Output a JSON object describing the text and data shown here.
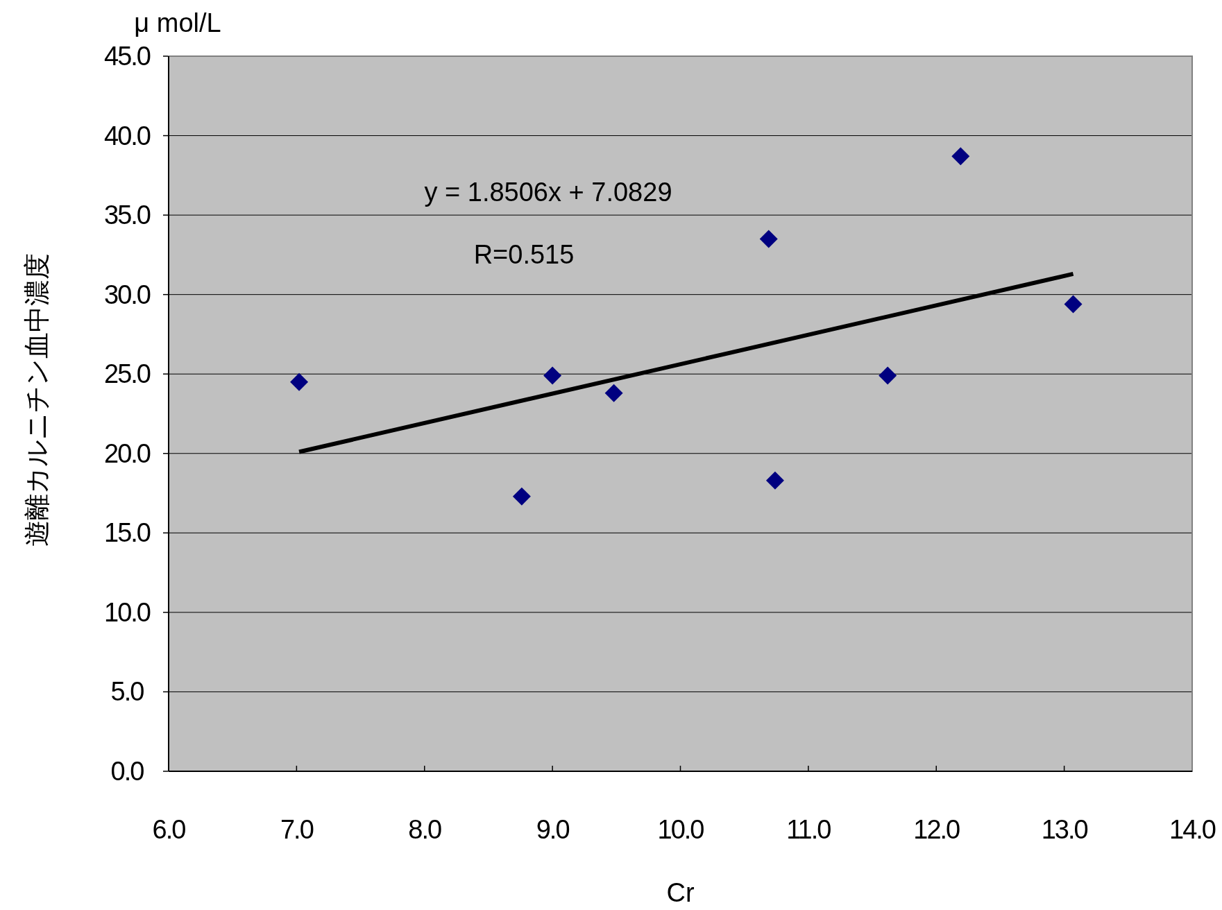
{
  "chart_data": {
    "type": "scatter",
    "xlabel": "Cr",
    "ylabel": "遊離カルニチン血中濃度",
    "annotations": [
      "μ mol/L",
      "y = 1.8506x + 7.0829",
      "R=0.515"
    ],
    "xlim": [
      6,
      14
    ],
    "xticks": [
      {
        "value": 6,
        "label": "6.0"
      },
      {
        "value": 7,
        "label": "7.0"
      },
      {
        "value": 8,
        "label": "8.0"
      },
      {
        "value": 9,
        "label": "9.0"
      },
      {
        "value": 10,
        "label": "10.0"
      },
      {
        "value": 11,
        "label": "11.0"
      },
      {
        "value": 12,
        "label": "12.0"
      },
      {
        "value": 13,
        "label": "13.0"
      },
      {
        "value": 14,
        "label": "14.0"
      }
    ],
    "ylim": [
      0,
      45
    ],
    "yticks": [
      {
        "value": 0,
        "label": "0.0"
      },
      {
        "value": 5,
        "label": "5.0"
      },
      {
        "value": 10,
        "label": "10.0"
      },
      {
        "value": 15,
        "label": "15.0"
      },
      {
        "value": 20,
        "label": "20.0"
      },
      {
        "value": 25,
        "label": "25.0"
      },
      {
        "value": 30,
        "label": "30.0"
      },
      {
        "value": 35,
        "label": "35.0"
      },
      {
        "value": 40,
        "label": "40.0"
      },
      {
        "value": 45,
        "label": "45.0"
      }
    ],
    "grid": "y",
    "marker": "diamond",
    "series": [
      {
        "type": "scatter",
        "color": "#000080",
        "x": [
          7.02,
          8.76,
          9.0,
          9.48,
          10.69,
          10.74,
          11.62,
          12.19,
          13.07
        ],
        "values": [
          24.5,
          17.3,
          24.9,
          23.8,
          33.5,
          18.3,
          24.9,
          38.7,
          29.4
        ]
      },
      {
        "type": "line",
        "color": "#000000",
        "marker": "none",
        "x": [
          7.02,
          13.07
        ],
        "values": [
          20.1,
          31.3
        ]
      }
    ]
  }
}
